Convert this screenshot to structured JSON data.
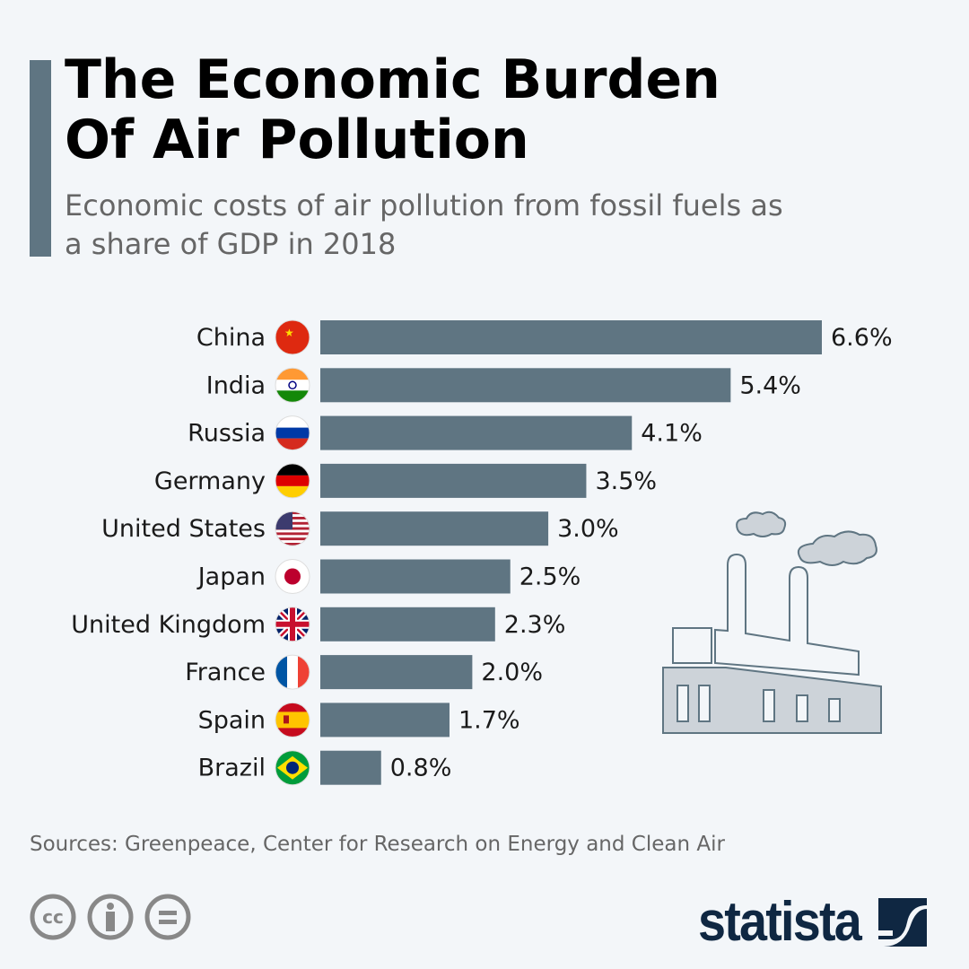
{
  "header": {
    "title": "The Economic Burden Of Air Pollution",
    "subtitle": "Economic costs of air pollution from fossil fuels as a share of GDP in 2018"
  },
  "chart_data": {
    "type": "bar",
    "orientation": "horizontal",
    "categories": [
      "China",
      "India",
      "Russia",
      "Germany",
      "United States",
      "Japan",
      "United Kingdom",
      "France",
      "Spain",
      "Brazil"
    ],
    "values": [
      6.6,
      5.4,
      4.1,
      3.5,
      3.0,
      2.5,
      2.3,
      2.0,
      1.7,
      0.8
    ],
    "value_labels": [
      "6.6%",
      "5.4%",
      "4.1%",
      "3.5%",
      "3.0%",
      "2.5%",
      "2.3%",
      "2.0%",
      "1.7%",
      "0.8%"
    ],
    "flags": [
      "china-flag-icon",
      "india-flag-icon",
      "russia-flag-icon",
      "germany-flag-icon",
      "united-states-flag-icon",
      "japan-flag-icon",
      "united-kingdom-flag-icon",
      "france-flag-icon",
      "spain-flag-icon",
      "brazil-flag-icon"
    ],
    "bar_color": "#5f7582",
    "xlim": [
      0,
      6.6
    ],
    "grid": false
  },
  "footer": {
    "source": "Sources: Greenpeace, Center for Research on Energy and Clean Air",
    "brand": "statista"
  },
  "icons": [
    "cc-icon",
    "attribution-icon",
    "no-derivatives-icon",
    "factory-illustration"
  ]
}
